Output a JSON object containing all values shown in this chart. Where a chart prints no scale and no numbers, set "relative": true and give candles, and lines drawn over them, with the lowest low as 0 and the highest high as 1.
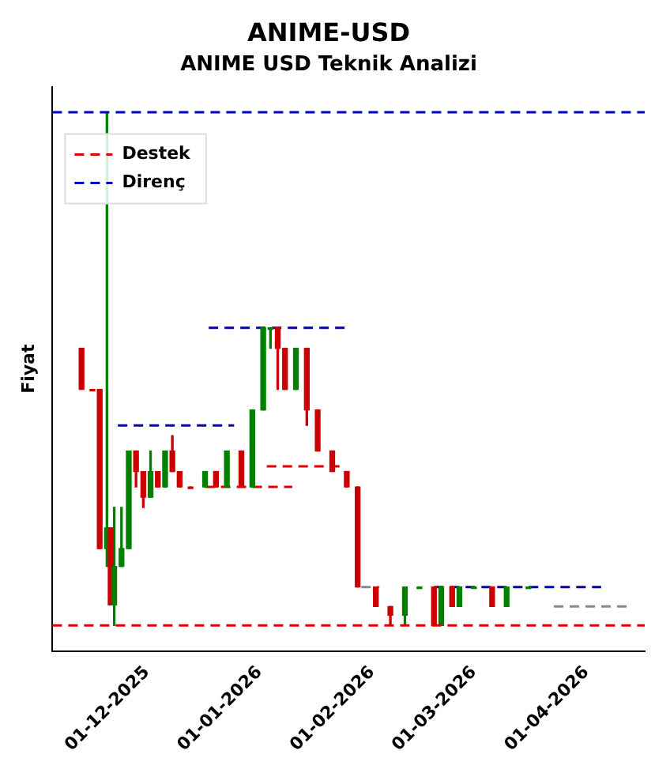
{
  "chart_data": {
    "type": "candlestick",
    "title": "ANIME-USD",
    "subtitle": "ANIME USD Teknik Analizi",
    "ylabel": "Fiyat",
    "relative": true,
    "x": [
      "2025-11-13",
      "2025-11-16",
      "2025-11-18",
      "2025-11-20",
      "2025-11-21",
      "2025-11-22",
      "2025-11-24",
      "2025-11-26",
      "2025-11-28",
      "2025-11-30",
      "2025-12-02",
      "2025-12-04",
      "2025-12-06",
      "2025-12-08",
      "2025-12-10",
      "2025-12-13",
      "2025-12-17",
      "2025-12-20",
      "2025-12-23",
      "2025-12-27",
      "2025-12-30",
      "2026-01-02",
      "2026-01-04",
      "2026-01-06",
      "2026-01-08",
      "2026-01-11",
      "2026-01-14",
      "2026-01-17",
      "2026-01-21",
      "2026-01-25",
      "2026-01-28",
      "2026-02-02",
      "2026-02-06",
      "2026-02-10",
      "2026-02-14",
      "2026-02-18",
      "2026-02-20",
      "2026-02-23",
      "2026-02-25",
      "2026-03-01",
      "2026-03-06",
      "2026-03-10",
      "2026-03-16"
    ],
    "ohlc": [
      [
        0.54,
        0.54,
        0.46,
        0.46
      ],
      [
        0.46,
        0.46,
        0.46,
        0.46
      ],
      [
        0.46,
        0.46,
        0.15,
        0.15
      ],
      [
        0.15,
        1.0,
        0.115,
        0.19
      ],
      [
        0.19,
        0.19,
        0.04,
        0.04
      ],
      [
        0.04,
        0.23,
        0,
        0.115
      ],
      [
        0.115,
        0.23,
        0.115,
        0.15
      ],
      [
        0.15,
        0.34,
        0.15,
        0.34
      ],
      [
        0.34,
        0.34,
        0.27,
        0.3
      ],
      [
        0.3,
        0.3,
        0.23,
        0.25
      ],
      [
        0.25,
        0.34,
        0.25,
        0.3
      ],
      [
        0.3,
        0.3,
        0.27,
        0.27
      ],
      [
        0.27,
        0.34,
        0.27,
        0.34
      ],
      [
        0.34,
        0.37,
        0.3,
        0.3
      ],
      [
        0.3,
        0.3,
        0.27,
        0.27
      ],
      [
        0.27,
        0.27,
        0.27,
        0.27
      ],
      [
        0.27,
        0.3,
        0.27,
        0.3
      ],
      [
        0.3,
        0.3,
        0.27,
        0.27
      ],
      [
        0.27,
        0.34,
        0.27,
        0.34
      ],
      [
        0.34,
        0.34,
        0.27,
        0.27
      ],
      [
        0.27,
        0.42,
        0.27,
        0.42
      ],
      [
        0.42,
        0.58,
        0.42,
        0.58
      ],
      [
        0.58,
        0.58,
        0.54,
        0.58
      ],
      [
        0.58,
        0.58,
        0.46,
        0.54
      ],
      [
        0.54,
        0.54,
        0.46,
        0.46
      ],
      [
        0.46,
        0.54,
        0.46,
        0.54
      ],
      [
        0.54,
        0.54,
        0.39,
        0.42
      ],
      [
        0.42,
        0.42,
        0.34,
        0.34
      ],
      [
        0.34,
        0.34,
        0.3,
        0.3
      ],
      [
        0.3,
        0.3,
        0.27,
        0.27
      ],
      [
        0.27,
        0.27,
        0.075,
        0.075
      ],
      [
        0.075,
        0.075,
        0.037,
        0.037
      ],
      [
        0.037,
        0.037,
        0,
        0.02
      ],
      [
        0.02,
        0.075,
        0,
        0.075
      ],
      [
        0.075,
        0.075,
        0.075,
        0.075
      ],
      [
        0.075,
        0.075,
        0,
        0
      ],
      [
        0,
        0.075,
        0,
        0.075
      ],
      [
        0.075,
        0.075,
        0.037,
        0.037
      ],
      [
        0.037,
        0.075,
        0.037,
        0.075
      ],
      [
        0.075,
        0.075,
        0.075,
        0.075
      ],
      [
        0.075,
        0.075,
        0.037,
        0.037
      ],
      [
        0.037,
        0.075,
        0.037,
        0.075
      ],
      [
        0.075,
        0.075,
        0.075,
        0.075
      ]
    ],
    "colors": [
      "#cc0000",
      "#cc0000",
      "#cc0000",
      "#008000",
      "#cc0000",
      "#008000",
      "#008000",
      "#008000",
      "#cc0000",
      "#cc0000",
      "#008000",
      "#cc0000",
      "#008000",
      "#cc0000",
      "#cc0000",
      "#cc0000",
      "#008000",
      "#cc0000",
      "#008000",
      "#cc0000",
      "#008000",
      "#008000",
      "#008000",
      "#cc0000",
      "#cc0000",
      "#008000",
      "#cc0000",
      "#cc0000",
      "#cc0000",
      "#cc0000",
      "#cc0000",
      "#cc0000",
      "#cc0000",
      "#008000",
      "#008000",
      "#cc0000",
      "#008000",
      "#cc0000",
      "#008000",
      "#008000",
      "#cc0000",
      "#008000",
      "#008000"
    ],
    "series": [
      {
        "name": "Destek",
        "type": "line",
        "color": "#dd0000",
        "line_style": "dashed",
        "x": [
          "2025-12-17",
          "2026-01-10"
        ],
        "values": [
          0.27,
          0.27
        ]
      },
      {
        "type": "line",
        "color": "#dd0000",
        "line_style": "dashed",
        "x": [
          "2026-01-03",
          "2026-01-24"
        ],
        "values": [
          0.31,
          0.31
        ]
      },
      {
        "name": "Direnç",
        "type": "line",
        "color": "#0000bb",
        "line_style": "dashed",
        "x": [
          "2025-11-23",
          "2025-12-25"
        ],
        "values": [
          0.39,
          0.39
        ]
      },
      {
        "type": "line",
        "color": "#0000bb",
        "line_style": "dashed",
        "x": [
          "2025-12-18",
          "2026-01-25"
        ],
        "values": [
          0.58,
          0.58
        ]
      },
      {
        "type": "line",
        "color": "#0000bb",
        "line_style": "dashed",
        "x": [
          "2026-02-18",
          "2026-04-05"
        ],
        "values": [
          0.075,
          0.075
        ]
      },
      {
        "type": "line",
        "color": "#888888",
        "line_style": "dashed",
        "x": [
          "2026-01-29",
          "2026-02-03"
        ],
        "values": [
          0.075,
          0.075
        ]
      },
      {
        "type": "line",
        "color": "#888888",
        "line_style": "dashed",
        "x": [
          "2026-03-23",
          "2026-04-12"
        ],
        "values": [
          0.037,
          0.037
        ]
      }
    ],
    "ref_lines": [
      {
        "axis": "y",
        "value": 0,
        "color": "#dd0000",
        "line_style": "dashed"
      },
      {
        "axis": "y",
        "value": 1,
        "color": "#0000bb",
        "line_style": "dashed"
      }
    ],
    "xlim": [
      "2025-11-05",
      "2026-04-17"
    ],
    "xticks": [
      {
        "value": "2025-12-01",
        "label": "01-12-2025"
      },
      {
        "value": "2026-01-01",
        "label": "01-01-2026"
      },
      {
        "value": "2026-02-01",
        "label": "01-02-2026"
      },
      {
        "value": "2026-03-01",
        "label": "01-03-2026"
      },
      {
        "value": "2026-04-01",
        "label": "01-04-2026"
      }
    ],
    "legend": "top left",
    "grid": false
  }
}
